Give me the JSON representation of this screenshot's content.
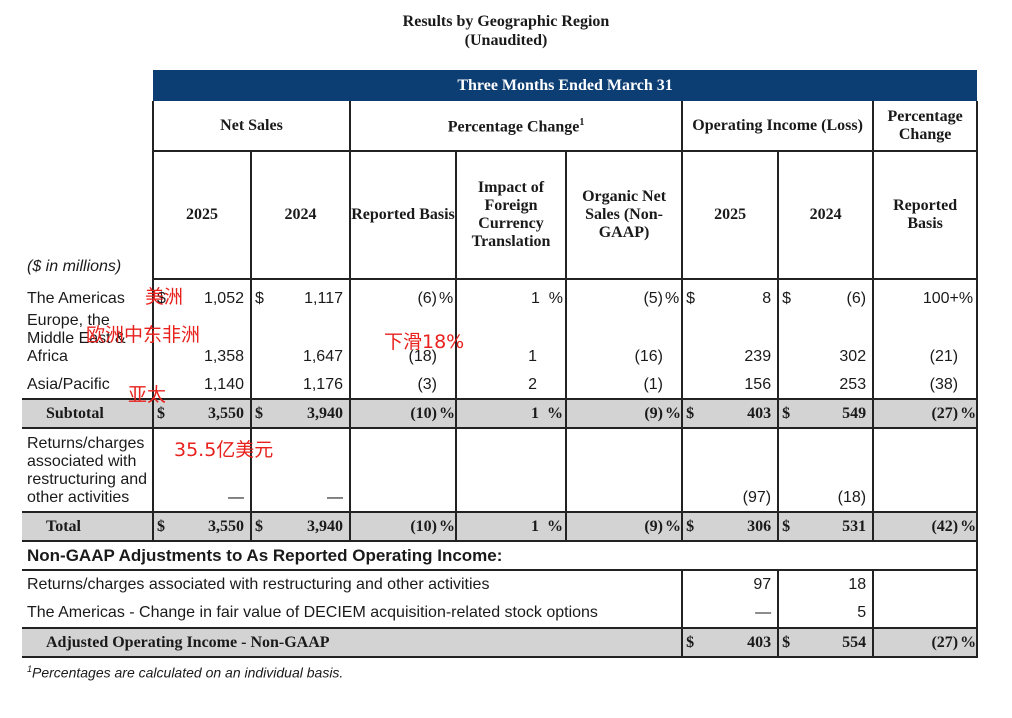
{
  "title": {
    "line1": "Results by Geographic Region",
    "line2": "(Unaudited)"
  },
  "header": {
    "period": "Three Months Ended March 31",
    "net_sales": "Net Sales",
    "pct_change": "Percentage Change",
    "pct_change_sup": "1",
    "op_income": "Operating Income (Loss)",
    "pct_change2": "Percentage Change",
    "y2025": "2025",
    "y2024": "2024",
    "reported_basis": "Reported Basis",
    "impact_fx": "Impact of Foreign Currency Translation",
    "organic": "Organic Net Sales (Non-GAAP)",
    "op2025": "2025",
    "op2024": "2024",
    "reported_basis2": "Reported Basis",
    "units": "($ in millions)"
  },
  "rows": {
    "americas": {
      "label": "The Americas",
      "ns25": "1,052",
      "ns24": "1,117",
      "rep": "(6)",
      "fx": "1",
      "org": "(5)",
      "oi25": "8",
      "oi24": "(6)",
      "pc": "100+%"
    },
    "emea": {
      "label": "Europe, the Middle East & Africa",
      "ns25": "1,358",
      "ns24": "1,647",
      "rep": "(18)",
      "fx": "1",
      "org": "(16)",
      "oi25": "239",
      "oi24": "302",
      "pc": "(21)"
    },
    "apac": {
      "label": "Asia/Pacific",
      "ns25": "1,140",
      "ns24": "1,176",
      "rep": "(3)",
      "fx": "2",
      "org": "(1)",
      "oi25": "156",
      "oi24": "253",
      "pc": "(38)"
    },
    "subtotal": {
      "label": "Subtotal",
      "ns25": "3,550",
      "ns24": "3,940",
      "rep": "(10)",
      "fx": "1",
      "org": "(9)",
      "oi25": "403",
      "oi24": "549",
      "pc": "(27)"
    },
    "returns": {
      "label": "Returns/charges associated with restructuring and other activities",
      "ns25": "—",
      "ns24": "—",
      "oi25": "(97)",
      "oi24": "(18)"
    },
    "total": {
      "label": "Total",
      "ns25": "3,550",
      "ns24": "3,940",
      "rep": "(10)",
      "fx": "1",
      "org": "(9)",
      "oi25": "306",
      "oi24": "531",
      "pc": "(42)"
    }
  },
  "nongaap": {
    "heading": "Non-GAAP Adjustments to As Reported Operating Income:",
    "r1": {
      "label": "Returns/charges associated with restructuring and other activities",
      "oi25": "97",
      "oi24": "18"
    },
    "r2": {
      "label": "The Americas - Change in fair value of DECIEM acquisition-related stock options",
      "oi25": "—",
      "oi24": "5"
    },
    "adj": {
      "label": "Adjusted Operating Income - Non-GAAP",
      "oi25": "403",
      "oi24": "554",
      "pc": "(27)"
    }
  },
  "symbols": {
    "dollar": "$",
    "pct": "%"
  },
  "footnote": {
    "sup": "1",
    "text": "Percentages are calculated on an individual basis."
  },
  "annotations": {
    "americas_cn": "美洲",
    "emea_cn": "欧洲中东非洲",
    "decline_cn": "下滑18%",
    "apac_cn": "亚太",
    "amount_cn": "35.5亿美元"
  },
  "colors": {
    "header_bar": "#0d3e73",
    "row_shade": "#d3d3d3",
    "annotation": "#e8211d"
  }
}
